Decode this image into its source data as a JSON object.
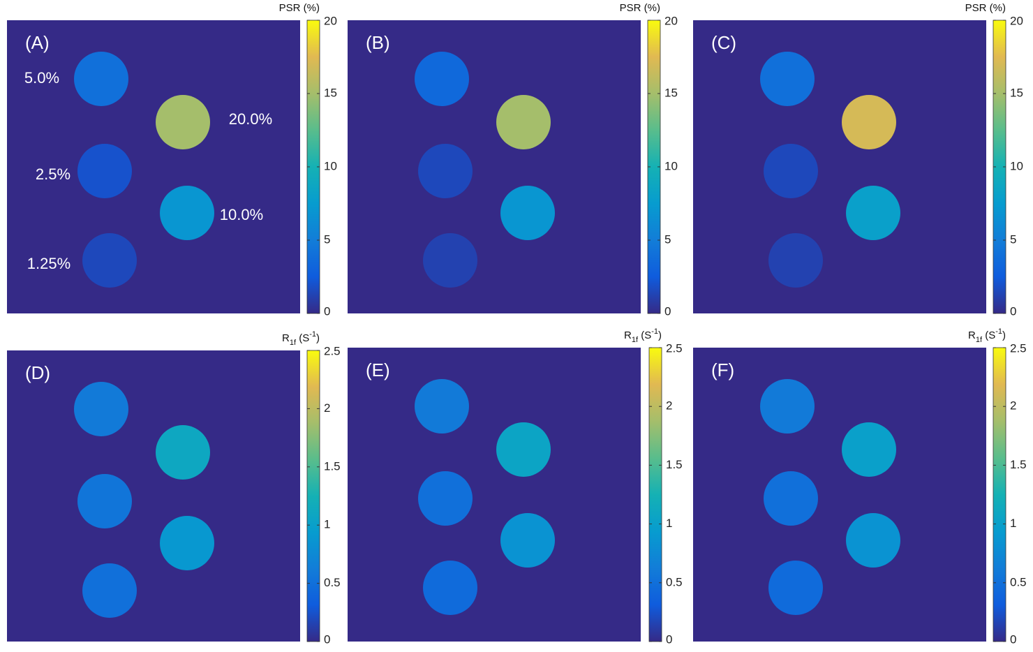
{
  "chart_data": [
    {
      "type": "heatmap",
      "label": "(A)",
      "colorbar_title": [
        "PSR (%)"
      ],
      "clim": [
        0,
        20
      ],
      "cticks": [
        0,
        5,
        10,
        15,
        20
      ],
      "categories": [
        "5.0%",
        "20.0%",
        "2.5%",
        "10.0%",
        "1.25%"
      ],
      "values": [
        4,
        15,
        2,
        7,
        1.5
      ]
    },
    {
      "type": "heatmap",
      "label": "(B)",
      "colorbar_title": [
        "PSR (%)"
      ],
      "clim": [
        0,
        20
      ],
      "cticks": [
        0,
        5,
        10,
        15,
        20
      ],
      "categories": [
        null,
        null,
        null,
        null,
        null
      ],
      "values": [
        3.5,
        15,
        1.5,
        7,
        1.2
      ]
    },
    {
      "type": "heatmap",
      "label": "(C)",
      "colorbar_title": [
        "PSR (%)"
      ],
      "clim": [
        0,
        20
      ],
      "cticks": [
        0,
        5,
        10,
        15,
        20
      ],
      "categories": [
        null,
        null,
        null,
        null,
        null
      ],
      "values": [
        4,
        17,
        1.5,
        8,
        1.2
      ]
    },
    {
      "type": "heatmap",
      "label": "(D)",
      "colorbar_title": [
        "R",
        "1f",
        " (S",
        "-1",
        ")"
      ],
      "clim": [
        0,
        2.5
      ],
      "cticks": [
        0,
        0.5,
        1,
        1.5,
        2,
        2.5
      ],
      "categories": [
        null,
        null,
        null,
        null,
        null
      ],
      "values": [
        0.6,
        1.1,
        0.55,
        0.9,
        0.5
      ]
    },
    {
      "type": "heatmap",
      "label": "(E)",
      "colorbar_title": [
        "R",
        "1f",
        " (S",
        "-1",
        ")"
      ],
      "clim": [
        0,
        2.5
      ],
      "cticks": [
        0,
        0.5,
        1,
        1.5,
        2,
        2.5
      ],
      "categories": [
        null,
        null,
        null,
        null,
        null
      ],
      "values": [
        0.6,
        1.05,
        0.5,
        0.85,
        0.45
      ]
    },
    {
      "type": "heatmap",
      "label": "(F)",
      "colorbar_title": [
        "R",
        "1f",
        " (S",
        "-1",
        ")"
      ],
      "clim": [
        0,
        2.5
      ],
      "cticks": [
        0,
        0.5,
        1,
        1.5,
        2,
        2.5
      ],
      "categories": [
        null,
        null,
        null,
        null,
        null
      ],
      "values": [
        0.6,
        1.0,
        0.5,
        0.85,
        0.45
      ]
    }
  ]
}
